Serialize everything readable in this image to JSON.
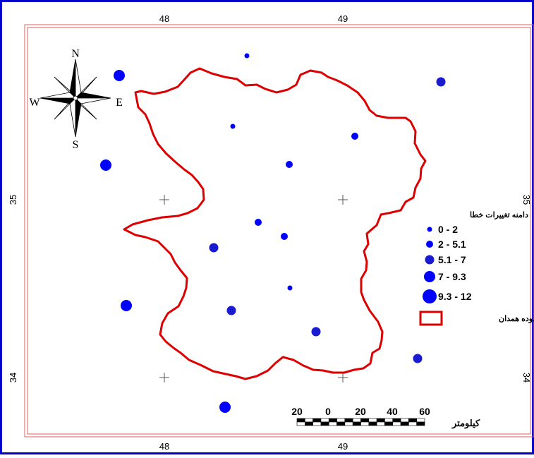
{
  "map": {
    "frame_color": "#0000cc",
    "neatline_color": "#e06060",
    "boundary_color": "#dd0000",
    "point_color": "#0000ff",
    "point_dark_color": "#1a1ad0"
  },
  "axes": {
    "x_ticks_top": [
      "48",
      "49"
    ],
    "x_ticks_bottom": [
      "48",
      "49"
    ],
    "y_ticks_left": [
      "35",
      "34"
    ],
    "y_ticks_right": [
      "35",
      "34"
    ]
  },
  "compass": {
    "north": "N",
    "south": "S",
    "east": "E",
    "west": "W",
    "icon": "compass-rose-icon"
  },
  "legend": {
    "title": "دامنه تغییرات خطا",
    "classes": [
      {
        "label": "0 - 2"
      },
      {
        "label": "2 - 5.1"
      },
      {
        "label": "5.1 - 7"
      },
      {
        "label": "7 - 9.3"
      },
      {
        "label": "9.3 - 12"
      }
    ],
    "boundary_label": "محدوده همدان"
  },
  "scale_bar": {
    "labels": [
      "20",
      "0",
      "20",
      "40",
      "60"
    ],
    "unit": "کیلومتر"
  }
}
